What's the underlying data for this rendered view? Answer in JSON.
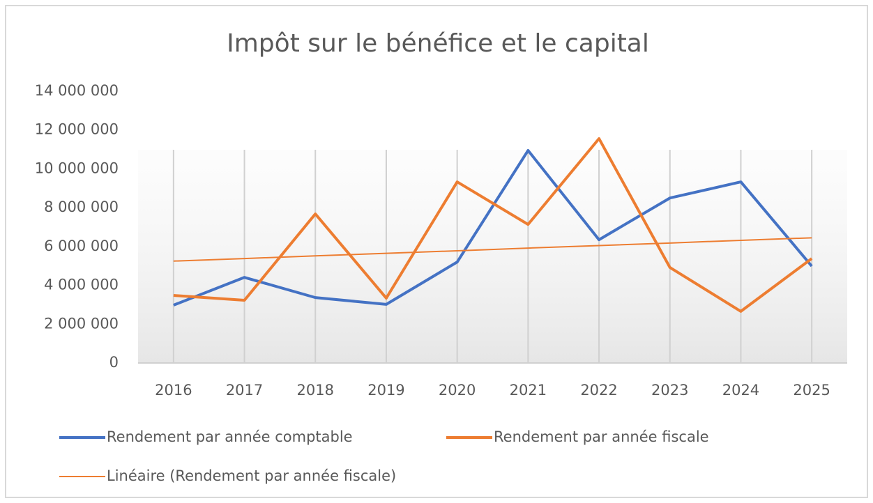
{
  "chart_data": {
    "type": "line",
    "title": "Impôt sur le bénéfice et le capital",
    "categories": [
      "2016",
      "2017",
      "2018",
      "2019",
      "2020",
      "2021",
      "2022",
      "2023",
      "2024",
      "2025"
    ],
    "series": [
      {
        "name": "Rendement par année comptable",
        "color": "#4472c4",
        "width": 4,
        "values": [
          2980000,
          4410000,
          3370000,
          3020000,
          5200000,
          10950000,
          6350000,
          8500000,
          9330000,
          4990000
        ]
      },
      {
        "name": "Rendement par année fiscale",
        "color": "#ed7d31",
        "width": 4,
        "values": [
          3480000,
          3230000,
          7680000,
          3340000,
          9330000,
          7140000,
          11560000,
          4920000,
          2660000,
          5380000
        ]
      },
      {
        "name": "Linéaire (Rendement par année fiscale)",
        "color": "#ed7d31",
        "width": 2,
        "values": [
          5250000,
          5380000,
          5520000,
          5650000,
          5780000,
          5920000,
          6050000,
          6180000,
          6320000,
          6450000
        ]
      }
    ],
    "ylim": [
      0,
      14000000
    ],
    "yticks": [
      0,
      {
        "value": 2000000,
        "label": "2 000 000"
      },
      {
        "value": 4000000,
        "label": "4 000 000"
      },
      {
        "value": 6000000,
        "label": "6 000 000"
      },
      {
        "value": 8000000,
        "label": "8 000 000"
      },
      {
        "value": 10000000,
        "label": "10 000 000"
      },
      {
        "value": 12000000,
        "label": "12 000 000"
      },
      {
        "value": 14000000,
        "label": "14 000 000"
      }
    ],
    "grid": false,
    "legend": "bottom"
  }
}
